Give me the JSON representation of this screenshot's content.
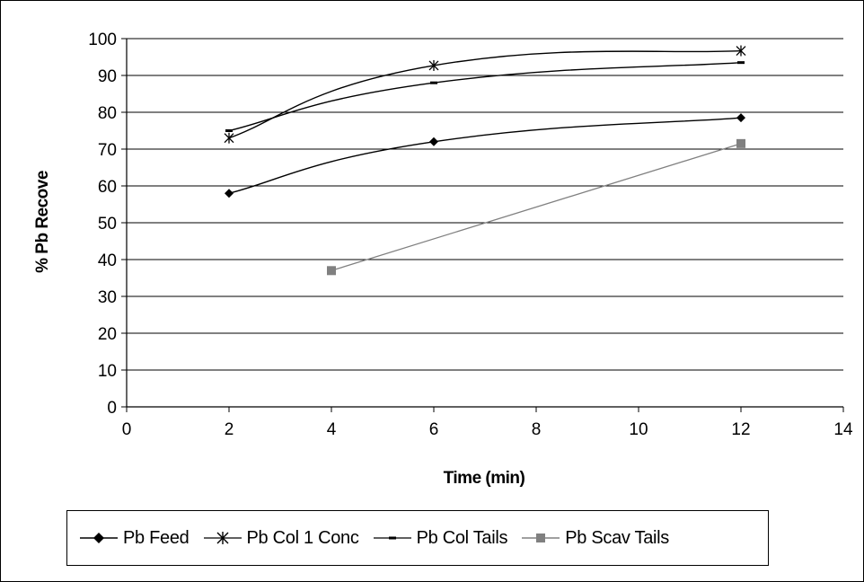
{
  "chart_data": {
    "type": "line",
    "xlabel": "Time (min)",
    "ylabel": "% Pb Recove",
    "xlim": [
      0,
      14
    ],
    "ylim": [
      0,
      100
    ],
    "xticks": [
      "0",
      "2",
      "4",
      "6",
      "8",
      "10",
      "12",
      "14"
    ],
    "yticks": [
      "0",
      "10",
      "20",
      "30",
      "40",
      "50",
      "60",
      "70",
      "80",
      "90",
      "100"
    ],
    "grid": "horizontal",
    "legend_position": "bottom",
    "series": [
      {
        "name": "Pb Feed",
        "marker": "diamond",
        "color": "#000000",
        "points": [
          [
            2,
            58
          ],
          [
            6,
            72
          ],
          [
            12,
            78.5
          ]
        ]
      },
      {
        "name": "Pb Col 1 Conc",
        "marker": "star",
        "color": "#000000",
        "points": [
          [
            2,
            73
          ],
          [
            6,
            92.7
          ],
          [
            12,
            96.7
          ]
        ]
      },
      {
        "name": "Pb Col Tails",
        "marker": "dash",
        "color": "#000000",
        "points": [
          [
            2,
            75
          ],
          [
            6,
            88
          ],
          [
            12,
            93.5
          ]
        ]
      },
      {
        "name": "Pb Scav Tails",
        "marker": "square",
        "color": "#808080",
        "points": [
          [
            4,
            37
          ],
          [
            12,
            71.5
          ]
        ]
      }
    ]
  }
}
